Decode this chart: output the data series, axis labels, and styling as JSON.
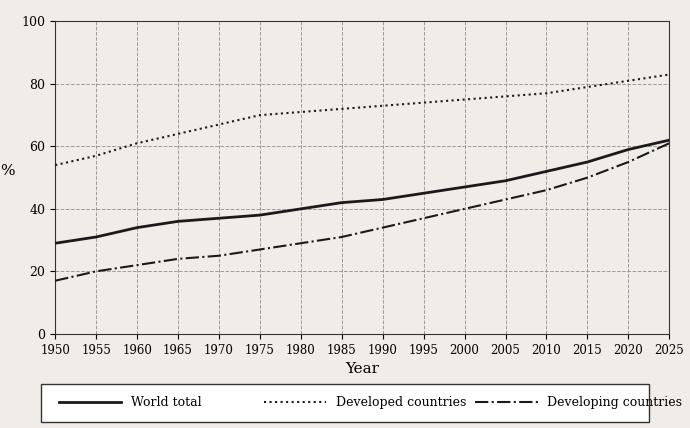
{
  "years": [
    1950,
    1955,
    1960,
    1965,
    1970,
    1975,
    1980,
    1985,
    1990,
    1995,
    2000,
    2005,
    2010,
    2015,
    2020,
    2025
  ],
  "world_total": [
    29,
    31,
    34,
    36,
    37,
    38,
    40,
    42,
    43,
    45,
    47,
    49,
    52,
    55,
    59,
    62
  ],
  "developed": [
    54,
    57,
    61,
    64,
    67,
    70,
    71,
    72,
    73,
    74,
    75,
    76,
    77,
    79,
    81,
    83
  ],
  "developing": [
    17,
    20,
    22,
    24,
    25,
    27,
    29,
    31,
    34,
    37,
    40,
    43,
    46,
    50,
    55,
    61
  ],
  "xlabel": "Year",
  "ylabel": "%",
  "ylim": [
    0,
    100
  ],
  "yticks": [
    0,
    20,
    40,
    60,
    80,
    100
  ],
  "xlim": [
    1950,
    2025
  ],
  "xticks": [
    1950,
    1955,
    1960,
    1965,
    1970,
    1975,
    1980,
    1985,
    1990,
    1995,
    2000,
    2005,
    2010,
    2015,
    2020,
    2025
  ],
  "legend_labels": [
    "World total",
    "Developed countries",
    "Developing countries"
  ],
  "background_color": "#f0ede8",
  "line_color": "#1a1a1a",
  "grid_color": "#888888"
}
